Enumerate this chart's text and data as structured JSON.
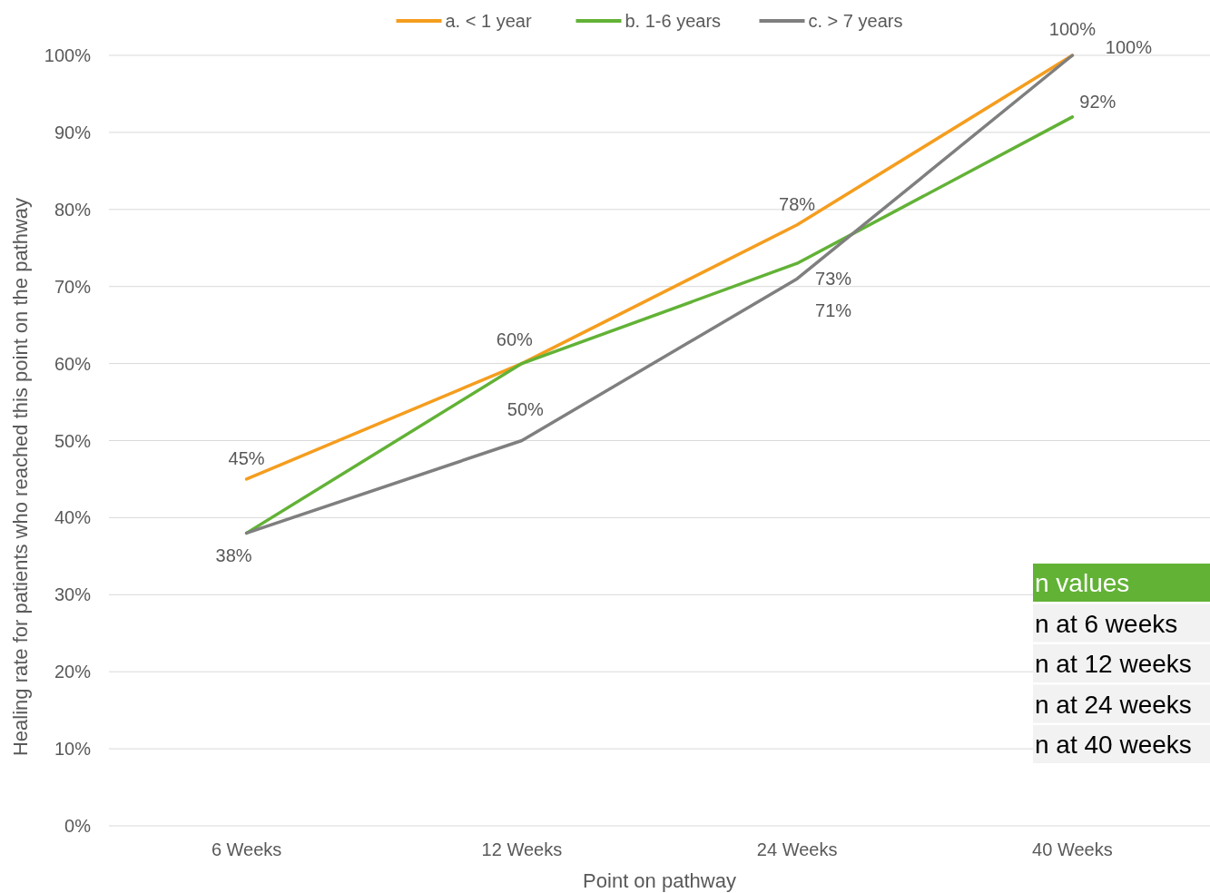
{
  "chart_data": {
    "type": "line",
    "xlabel": "Point on pathway",
    "ylabel": "Healing rate for patients who reached this point on the pathway",
    "categories": [
      "6 Weeks",
      "12 Weeks",
      "24 Weeks",
      "40 Weeks"
    ],
    "series": [
      {
        "name": "a. < 1 year",
        "color": "#f59d1e",
        "values": [
          45,
          60,
          78,
          100
        ],
        "value_labels": [
          "45%",
          null,
          "78%",
          "100%"
        ]
      },
      {
        "name": "b. 1-6 years",
        "color": "#62b236",
        "values": [
          38,
          60,
          73,
          92
        ],
        "value_labels": [
          null,
          "60%",
          "73%",
          "92%"
        ]
      },
      {
        "name": "c. > 7 years",
        "color": "#7f7f7f",
        "values": [
          38,
          50,
          71,
          100
        ],
        "value_labels": [
          "38%",
          "50%",
          "71%",
          "100%"
        ]
      }
    ],
    "ylim": [
      0,
      100
    ],
    "yticks": [
      {
        "value": 0,
        "label": "0%"
      },
      {
        "value": 10,
        "label": "10%"
      },
      {
        "value": 20,
        "label": "20%"
      },
      {
        "value": 30,
        "label": "30%"
      },
      {
        "value": 40,
        "label": "40%"
      },
      {
        "value": 50,
        "label": "50%"
      },
      {
        "value": 60,
        "label": "60%"
      },
      {
        "value": 70,
        "label": "70%"
      },
      {
        "value": 80,
        "label": "80%"
      },
      {
        "value": 90,
        "label": "90%"
      },
      {
        "value": 100,
        "label": "100%"
      }
    ],
    "grid": "y",
    "legend": "top",
    "marker": "none",
    "line_style": "solid",
    "annotations": [
      "n values",
      "n at 6 weeks",
      "n at 12 weeks",
      "n at 24 weeks",
      "n at 40 weeks"
    ]
  }
}
